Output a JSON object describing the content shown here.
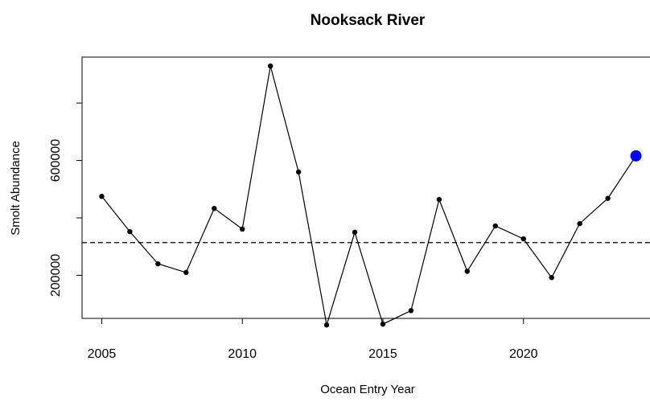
{
  "chart_data": {
    "type": "line",
    "title": "Nooksack River",
    "xlabel": "Ocean Entry Year",
    "ylabel": "Smolt Abundance",
    "xlim": [
      2004.3,
      2024.9
    ],
    "ylim": [
      50000,
      960000
    ],
    "x_ticks": [
      2005,
      2010,
      2015,
      2020
    ],
    "y_ticks": [
      200000,
      600000
    ],
    "y_tick_minor": [
      400000,
      800000
    ],
    "grid": false,
    "legend": "none",
    "series": [
      {
        "x": [
          2005,
          2006,
          2007,
          2008,
          2009,
          2010,
          2011,
          2012,
          2013,
          2014,
          2015,
          2016,
          2017,
          2018,
          2019,
          2020,
          2021,
          2022,
          2023,
          2024
        ],
        "values": [
          475000,
          352000,
          240000,
          210000,
          433000,
          361000,
          929000,
          560000,
          27000,
          350000,
          30000,
          77000,
          464000,
          214000,
          372000,
          327000,
          192000,
          380000,
          468000,
          616000
        ],
        "color": "#000000"
      }
    ],
    "highlight_point": {
      "x": 2024,
      "value": 616000,
      "color": "#0000FF"
    },
    "reference_line": {
      "value": 314000,
      "style": "dashed",
      "color": "#000000"
    }
  }
}
